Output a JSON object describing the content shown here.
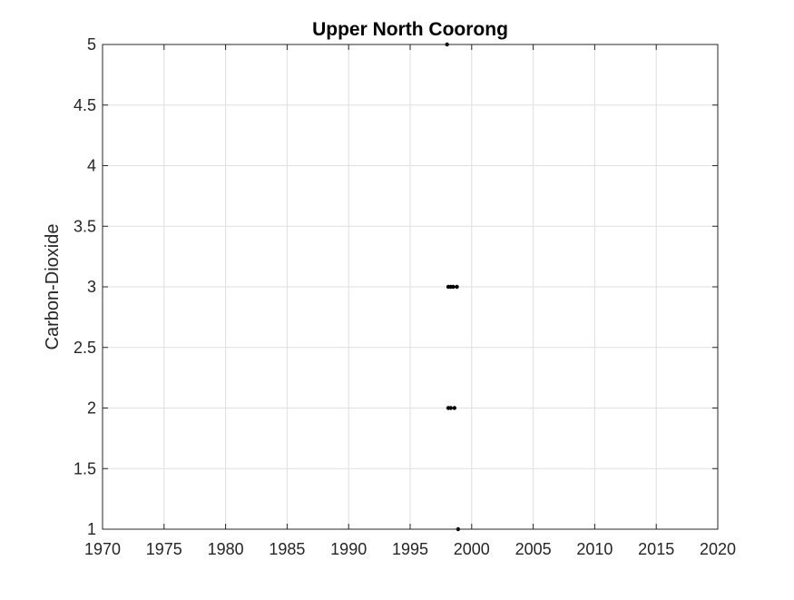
{
  "chart_data": {
    "type": "scatter",
    "title": "Upper North Coorong",
    "xlabel": "",
    "ylabel": "Carbon-Dioxide",
    "xlim": [
      1970,
      2020
    ],
    "ylim": [
      1,
      5
    ],
    "xticks": [
      1970,
      1975,
      1980,
      1985,
      1990,
      1995,
      2000,
      2005,
      2010,
      2015,
      2020
    ],
    "yticks": [
      1,
      1.5,
      2,
      2.5,
      3,
      3.5,
      4,
      4.5,
      5
    ],
    "ytick_labels": [
      "1",
      "1.5",
      "2",
      "2.5",
      "3",
      "3.5",
      "4",
      "4.5",
      "5"
    ],
    "grid": true,
    "marker_color": "#000000",
    "series": [
      {
        "x": [
          1998.0,
          1998.1,
          1998.3,
          1998.5,
          1998.8,
          1998.1,
          1998.3,
          1998.6,
          1998.9
        ],
        "y": [
          5,
          3,
          3,
          3,
          3,
          2,
          2,
          2,
          1
        ]
      }
    ]
  }
}
